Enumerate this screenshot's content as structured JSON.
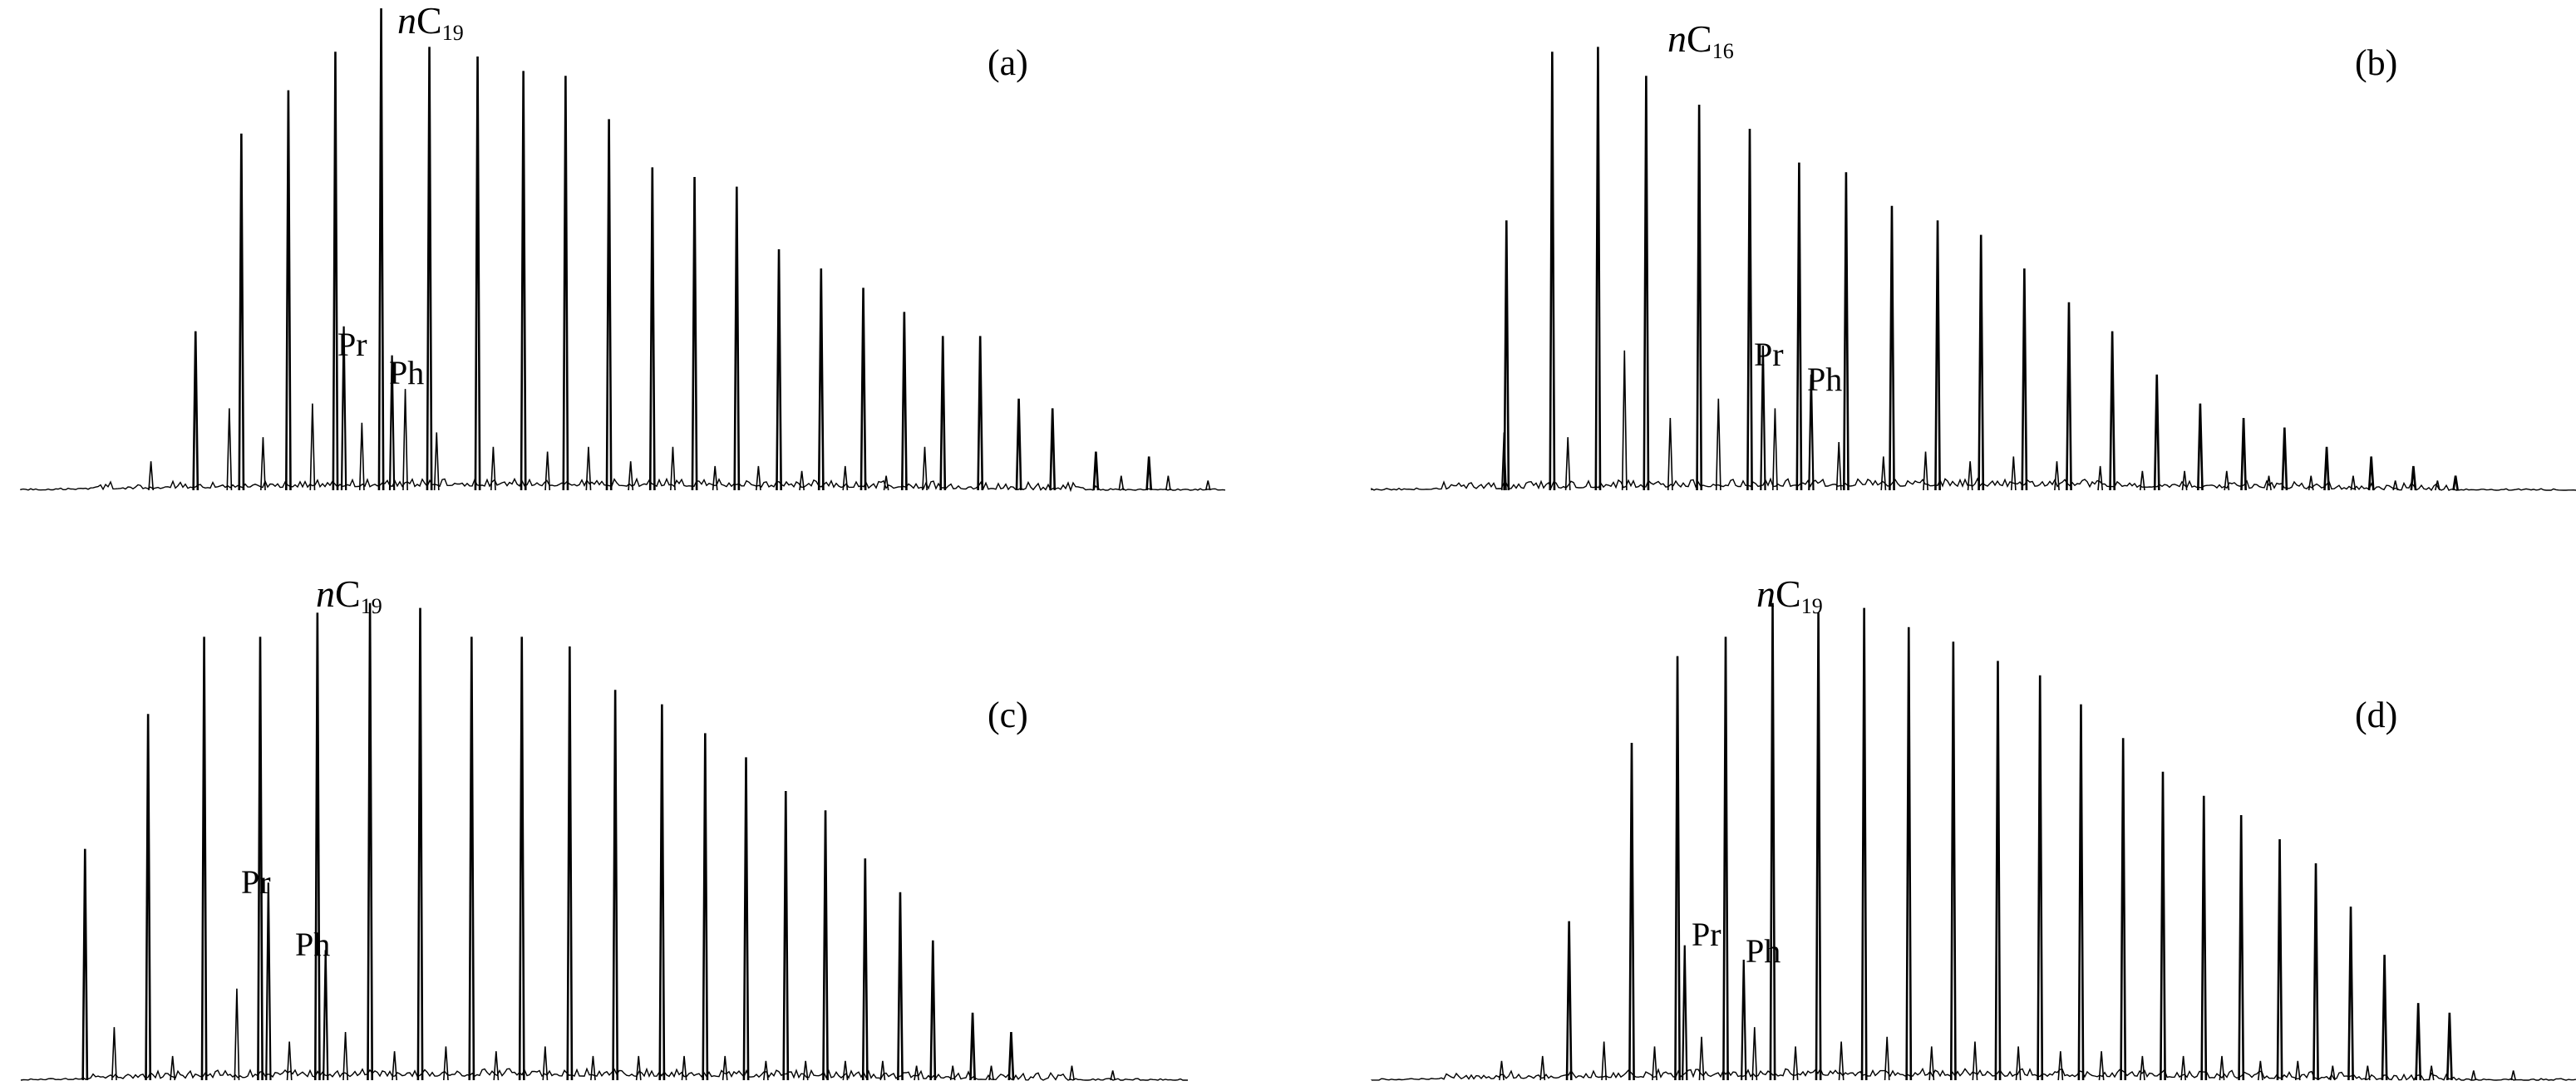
{
  "chart_data": [
    {
      "type": "line",
      "panel_label": "(a)",
      "x_range": [
        0,
        100
      ],
      "y_range": [
        0,
        100
      ],
      "peak_label": {
        "prefix": "n",
        "main": "C",
        "sub": "19"
      },
      "pr_label": "Pr",
      "ph_label": "Ph",
      "nalkane_peaks": {
        "x": [
          14.5,
          18.3,
          22.2,
          26.1,
          29.9,
          33.9,
          37.9,
          41.7,
          45.2,
          48.8,
          52.4,
          55.9,
          59.4,
          62.9,
          66.4,
          69.9,
          73.3,
          76.5,
          79.6,
          82.8,
          85.6,
          89.2,
          93.6
        ],
        "y": [
          33,
          74,
          83,
          91,
          100,
          92,
          90,
          87,
          86,
          77,
          67,
          65,
          63,
          50,
          46,
          42,
          37,
          32,
          32,
          19,
          17,
          8,
          7
        ]
      },
      "biomarker_peaks": {
        "x": [
          26.8,
          30.8
        ],
        "y": [
          34,
          28
        ]
      },
      "minor_peaks": {
        "x": [
          10.8,
          17.3,
          20.1,
          24.2,
          28.3,
          31.9,
          34.5,
          39.2,
          43.7,
          47.1,
          50.6,
          54.1,
          57.6,
          61.2,
          64.8,
          68.4,
          71.8,
          75.0,
          91.3,
          95.2,
          98.5
        ],
        "y": [
          6,
          17,
          11,
          18,
          14,
          21,
          12,
          9,
          8,
          9,
          6,
          9,
          5,
          5,
          4,
          5,
          3,
          9,
          3,
          3,
          2
        ]
      }
    },
    {
      "type": "line",
      "panel_label": "(b)",
      "x_range": [
        0,
        100
      ],
      "y_range": [
        0,
        100
      ],
      "peak_label": {
        "prefix": "n",
        "main": "C",
        "sub": "16"
      },
      "pr_label": "Pr",
      "ph_label": "Ph",
      "nalkane_peaks": {
        "x": [
          11.2,
          15.0,
          18.8,
          22.8,
          27.2,
          31.4,
          35.5,
          39.4,
          43.2,
          47.0,
          50.6,
          54.2,
          57.9,
          61.5,
          65.2,
          68.8,
          72.4,
          75.8,
          79.3,
          83.0,
          86.5,
          90.0
        ],
        "y": [
          56,
          91,
          92,
          86,
          80,
          75,
          68,
          66,
          59,
          56,
          53,
          46,
          39,
          33,
          24,
          18,
          15,
          13,
          9,
          7,
          5,
          3
        ]
      },
      "biomarker_peaks": {
        "x": [
          32.5,
          36.5
        ],
        "y": [
          30,
          24
        ]
      },
      "minor_peaks": {
        "x": [
          11.0,
          16.3,
          21.0,
          24.8,
          28.8,
          33.5,
          38.8,
          42.5,
          46.0,
          49.7,
          53.3,
          56.9,
          60.5,
          64.0,
          67.5,
          71.0,
          74.5,
          78.0,
          81.5,
          85.0,
          88.5
        ],
        "y": [
          12,
          11,
          29,
          15,
          19,
          17,
          10,
          7,
          8,
          6,
          7,
          6,
          5,
          4,
          4,
          4,
          3,
          3,
          3,
          2,
          2
        ]
      }
    },
    {
      "type": "line",
      "panel_label": "(c)",
      "x_range": [
        0,
        100
      ],
      "y_range": [
        0,
        100
      ],
      "peak_label": {
        "prefix": "n",
        "main": "C",
        "sub": "19"
      },
      "pr_label": "Pr",
      "ph_label": "Ph",
      "nalkane_peaks": {
        "x": [
          5.5,
          10.9,
          15.7,
          20.5,
          25.4,
          29.9,
          34.2,
          38.6,
          42.9,
          47.0,
          50.9,
          54.9,
          58.6,
          62.1,
          65.5,
          68.9,
          72.3,
          75.3,
          78.1,
          81.5,
          84.8
        ],
        "y": [
          48,
          76,
          92,
          92,
          97,
          99,
          98,
          92,
          92,
          90,
          81,
          78,
          72,
          67,
          60,
          56,
          46,
          39,
          29,
          14,
          10
        ]
      },
      "biomarker_peaks": {
        "x": [
          21.2,
          26.1
        ],
        "y": [
          41,
          27
        ]
      },
      "minor_peaks": {
        "x": [
          8.0,
          13.0,
          18.5,
          23.0,
          27.8,
          32.0,
          36.4,
          40.7,
          44.9,
          49.0,
          52.9,
          56.8,
          60.3,
          63.8,
          67.2,
          70.6,
          73.8,
          76.7,
          79.8,
          83.1,
          90.0,
          93.5
        ],
        "y": [
          11,
          5,
          19,
          8,
          10,
          6,
          7,
          6,
          7,
          5,
          5,
          5,
          5,
          4,
          4,
          4,
          4,
          3,
          3,
          3,
          3,
          2
        ]
      }
    },
    {
      "type": "line",
      "panel_label": "(d)",
      "x_range": [
        0,
        100
      ],
      "y_range": [
        0,
        100
      ],
      "peak_label": {
        "prefix": "n",
        "main": "C",
        "sub": "19"
      },
      "pr_label": "Pr",
      "ph_label": "Ph",
      "nalkane_peaks": {
        "x": [
          16.4,
          21.6,
          25.4,
          29.4,
          33.3,
          37.1,
          40.9,
          44.6,
          48.3,
          52.0,
          55.5,
          58.9,
          62.4,
          65.7,
          69.1,
          72.2,
          75.4,
          78.4,
          81.3,
          84.1,
          86.9,
          89.5
        ],
        "y": [
          33,
          70,
          88,
          92,
          99,
          97,
          98,
          94,
          91,
          87,
          84,
          78,
          71,
          64,
          59,
          55,
          50,
          45,
          36,
          26,
          16,
          14
        ]
      },
      "biomarker_peaks": {
        "x": [
          26.0,
          30.9
        ],
        "y": [
          28,
          25
        ]
      },
      "minor_peaks": {
        "x": [
          10.8,
          14.2,
          19.3,
          23.5,
          27.4,
          31.8,
          35.2,
          39.0,
          42.8,
          46.5,
          50.1,
          53.7,
          57.2,
          60.6,
          64.0,
          67.4,
          70.6,
          73.8,
          76.9,
          79.8,
          82.7,
          88.0,
          91.5,
          94.8
        ],
        "y": [
          4,
          5,
          8,
          7,
          9,
          11,
          7,
          8,
          9,
          7,
          8,
          7,
          6,
          6,
          5,
          5,
          5,
          4,
          4,
          3,
          3,
          3,
          2,
          2
        ]
      }
    }
  ]
}
